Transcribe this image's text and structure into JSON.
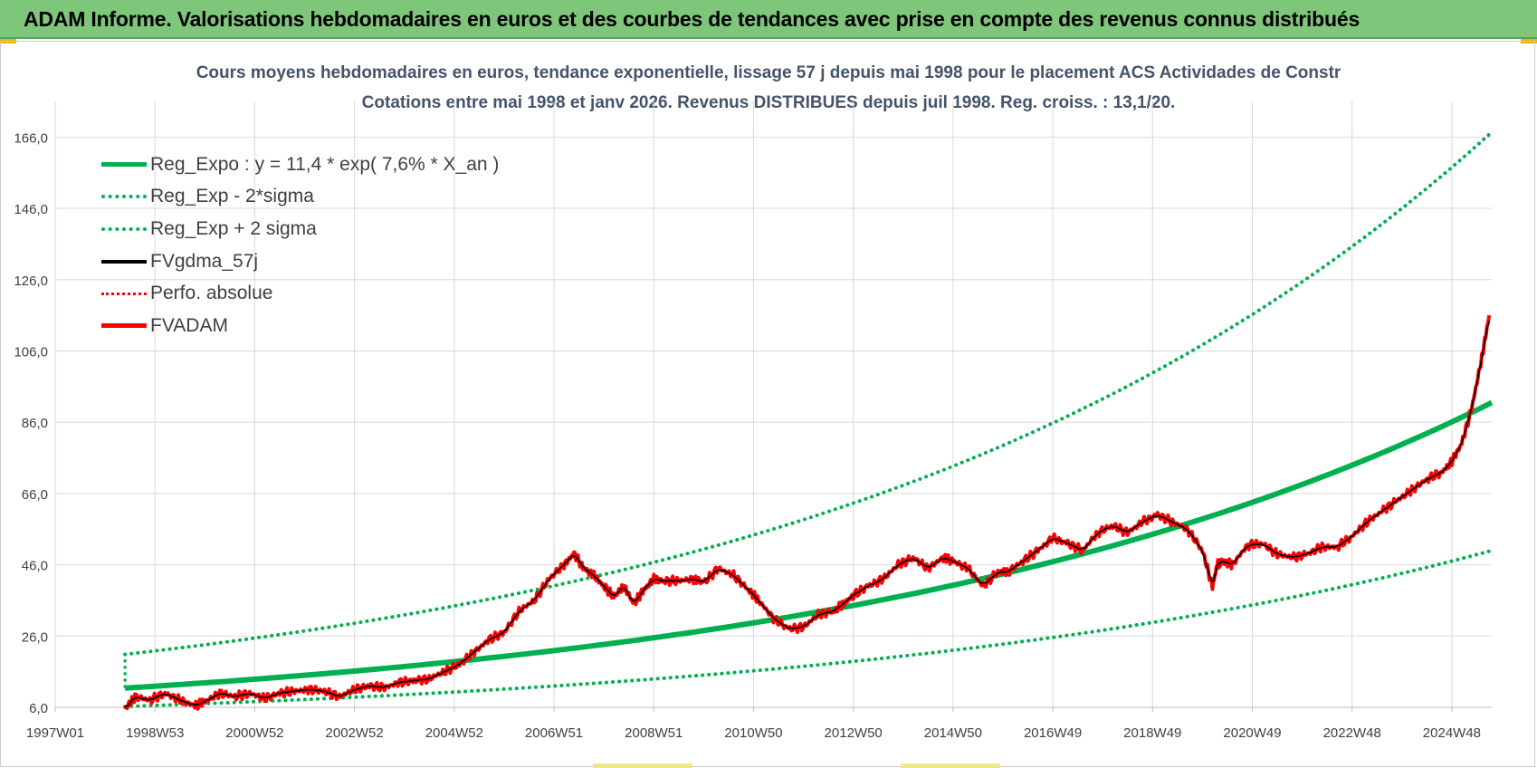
{
  "banner": {
    "title": "ADAM Informe. Valorisations hebdomadaires en euros et des courbes de tendances avec prise en compte des revenus connus distribués"
  },
  "chart_data": {
    "type": "line",
    "title": "Cours moyens hebdomadaires en euros, tendance exponentielle, lissage 57 j depuis mai 1998 pour le placement ACS Actividades de Constr",
    "subtitle": "Cotations entre mai 1998 et janv 2026. Revenus DISTRIBUES depuis juil 1998. Reg. croiss. : 13,1/20.",
    "xlabel": "",
    "ylabel": "",
    "xlim": [
      1997.0,
      2025.8
    ],
    "ylim": [
      6.0,
      176.0
    ],
    "grid": true,
    "legend_position": "top-left",
    "y_ticks": [
      "6,0",
      "26,0",
      "46,0",
      "66,0",
      "86,0",
      "106,0",
      "126,0",
      "146,0",
      "166,0"
    ],
    "x_ticks": [
      {
        "label": "1997W01",
        "x": 1997.0
      },
      {
        "label": "1998W53",
        "x": 1999.0
      },
      {
        "label": "2000W52",
        "x": 2001.0
      },
      {
        "label": "2002W52",
        "x": 2003.0
      },
      {
        "label": "2004W52",
        "x": 2005.0
      },
      {
        "label": "2006W51",
        "x": 2007.0
      },
      {
        "label": "2008W51",
        "x": 2009.0
      },
      {
        "label": "2010W50",
        "x": 2011.0
      },
      {
        "label": "2012W50",
        "x": 2013.0
      },
      {
        "label": "2014W50",
        "x": 2015.0
      },
      {
        "label": "2016W49",
        "x": 2017.0
      },
      {
        "label": "2018W49",
        "x": 2019.0
      },
      {
        "label": "2020W49",
        "x": 2021.0
      },
      {
        "label": "2022W48",
        "x": 2023.0
      },
      {
        "label": "2024W48",
        "x": 2025.0
      }
    ],
    "regression": {
      "start": 1998.4,
      "end": 2025.8,
      "base": 11.4,
      "rate": 0.076,
      "sigma_factor": 1.83
    },
    "series": [
      {
        "name": "Reg_Expo : y = 11,4 * exp( 7,6% *  X_an )",
        "color": "#00b050",
        "style": "solid"
      },
      {
        "name": "Reg_Exp - 2*sigma",
        "color": "#00b050",
        "style": "dotted"
      },
      {
        "name": "Reg_Exp + 2 sigma",
        "color": "#00b050",
        "style": "dotted"
      },
      {
        "name": "FVgdma_57j",
        "color": "#000000",
        "style": "solid"
      },
      {
        "name": "Perfo. absolue",
        "color": "#ff0000",
        "style": "dotted"
      },
      {
        "name": "FVADAM",
        "color": "#ff0000",
        "style": "solid",
        "x": [
          1998.4,
          1998.6,
          1998.9,
          1999.2,
          1999.5,
          1999.8,
          2000.0,
          2000.3,
          2000.6,
          2000.9,
          2001.2,
          2001.5,
          2001.8,
          2002.1,
          2002.4,
          2002.7,
          2003.0,
          2003.3,
          2003.6,
          2003.9,
          2004.2,
          2004.5,
          2004.8,
          2005.1,
          2005.4,
          2005.7,
          2006.0,
          2006.3,
          2006.6,
          2006.9,
          2007.2,
          2007.4,
          2007.6,
          2007.8,
          2008.0,
          2008.2,
          2008.4,
          2008.6,
          2008.8,
          2009.0,
          2009.2,
          2009.5,
          2009.8,
          2010.0,
          2010.3,
          2010.6,
          2010.9,
          2011.1,
          2011.4,
          2011.7,
          2012.0,
          2012.3,
          2012.6,
          2012.8,
          2013.0,
          2013.3,
          2013.6,
          2013.9,
          2014.2,
          2014.5,
          2014.8,
          2015.0,
          2015.3,
          2015.6,
          2015.9,
          2016.1,
          2016.4,
          2016.7,
          2017.0,
          2017.3,
          2017.6,
          2017.9,
          2018.2,
          2018.5,
          2018.8,
          2019.1,
          2019.4,
          2019.7,
          2020.0,
          2020.2,
          2020.3,
          2020.4,
          2020.6,
          2020.9,
          2021.2,
          2021.5,
          2021.8,
          2022.1,
          2022.4,
          2022.7,
          2023.0,
          2023.3,
          2023.6,
          2023.9,
          2024.2,
          2024.5,
          2024.8,
          2025.0,
          2025.2,
          2025.4,
          2025.6,
          2025.75
        ],
        "values": [
          5.5,
          9.0,
          8.0,
          10.0,
          8.0,
          6.5,
          7.5,
          10.0,
          9.0,
          10.0,
          8.5,
          10.0,
          10.5,
          11.0,
          10.5,
          9.0,
          11.0,
          12.0,
          11.5,
          13.0,
          13.5,
          14.0,
          16.0,
          18.0,
          21.5,
          25.0,
          27.0,
          33.0,
          36.0,
          42.0,
          46.0,
          49.0,
          45.0,
          43.0,
          40.0,
          37.0,
          40.0,
          35.0,
          39.0,
          42.0,
          41.5,
          41.5,
          42.0,
          41.0,
          45.0,
          43.0,
          39.0,
          36.0,
          31.0,
          28.0,
          28.5,
          32.0,
          33.0,
          35.0,
          37.5,
          40.0,
          42.0,
          46.0,
          48.0,
          45.0,
          48.0,
          47.0,
          45.0,
          40.0,
          44.0,
          44.0,
          47.0,
          50.0,
          53.5,
          52.0,
          50.0,
          55.0,
          57.0,
          55.0,
          58.0,
          60.0,
          58.0,
          56.0,
          50.0,
          40.0,
          46.0,
          47.0,
          46.0,
          51.5,
          52.0,
          49.0,
          48.0,
          49.0,
          51.0,
          51.0,
          54.0,
          58.0,
          61.0,
          64.0,
          67.0,
          70.0,
          72.0,
          75.0,
          80.0,
          90.0,
          104.0,
          116.0
        ]
      }
    ]
  }
}
